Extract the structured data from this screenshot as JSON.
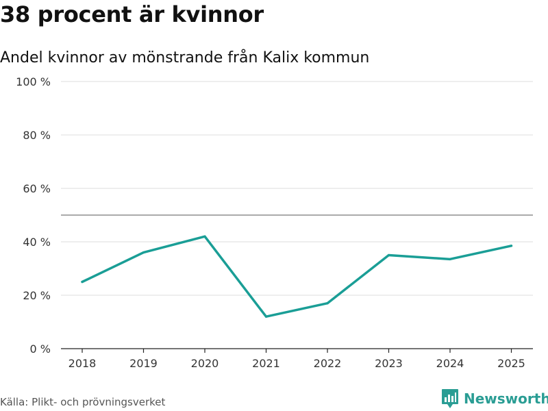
{
  "title": "38 procent är kvinnor",
  "subtitle": "Andel kvinnor av mönstrande från Kalix kommun",
  "source": "Källa: Plikt- och prövningsverket",
  "brand": {
    "name": "Newsworthy",
    "icon": "bar-chart-logo-icon",
    "color": "#2a9d94"
  },
  "chart_data": {
    "type": "line",
    "x": [
      "2018",
      "2019",
      "2020",
      "2021",
      "2022",
      "2023",
      "2024",
      "2025"
    ],
    "series": [
      {
        "values": [
          25,
          36,
          42,
          12,
          17,
          35,
          33.5,
          38.5
        ],
        "color": "#1a9e96"
      }
    ],
    "ylim": [
      0,
      100
    ],
    "yticks": [
      0,
      20,
      40,
      60,
      80,
      100
    ],
    "ytick_labels": [
      "0 %",
      "20 %",
      "40 %",
      "60 %",
      "80 %",
      "100 %"
    ],
    "reference_line": 50,
    "grid": true
  }
}
